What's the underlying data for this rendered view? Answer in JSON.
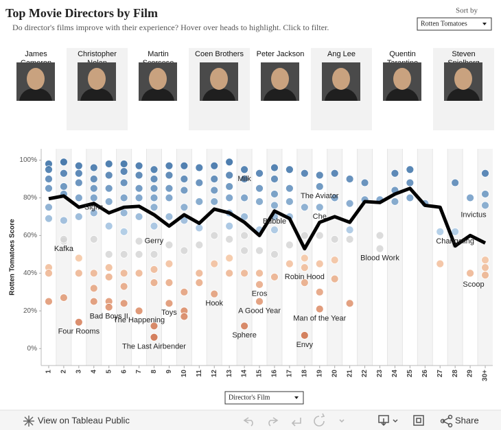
{
  "header": {
    "title": "Top Movie Directors by Film",
    "subtitle": "Do director's films improve with their experience? Hover over heads to highlight. Click to filter.",
    "sort_label": "Sort by",
    "sort_value": "Rotten Tomatoes"
  },
  "directors": [
    "James Cameron",
    "Christopher Nolan",
    "Martin Scorsese",
    "Coen Brothers",
    "Peter Jackson",
    "Ang Lee",
    "Quentin Tarantino",
    "Steven Spielberg"
  ],
  "controls": {
    "film_filter": "Director's Film"
  },
  "toolbar": {
    "view": "View on Tableau Public",
    "share": "Share"
  },
  "chart_data": {
    "type": "scatter",
    "y_label": "Rotten Tomatoes Score",
    "categories": [
      "1",
      "2",
      "3",
      "4",
      "5",
      "6",
      "7",
      "8",
      "9",
      "10",
      "11",
      "12",
      "13",
      "14",
      "15",
      "16",
      "17",
      "18",
      "19",
      "20",
      "21",
      "22",
      "23",
      "24",
      "25",
      "26",
      "27",
      "28",
      "29",
      "30+"
    ],
    "ylim": [
      -9,
      106
    ],
    "yticks": [
      {
        "value": 0,
        "label": "0%"
      },
      {
        "value": 20,
        "label": "20%"
      },
      {
        "value": 40,
        "label": "40%"
      },
      {
        "value": 60,
        "label": "60%"
      },
      {
        "value": 80,
        "label": "80%"
      },
      {
        "value": 100,
        "label": "100%"
      }
    ],
    "color_scale": {
      "domain": [
        0,
        49.9,
        50,
        60,
        60.1,
        100
      ],
      "colors": [
        "#c4542a",
        "#f6c49e",
        "#d3d3d3",
        "#d3d3d3",
        "#a9c9e6",
        "#1f5b99"
      ]
    },
    "line": {
      "color": "#000000",
      "values": [
        79.5,
        81,
        75,
        77,
        72,
        75,
        75.5,
        71,
        65,
        71,
        66.5,
        74,
        72,
        67,
        60,
        73,
        69,
        53,
        67,
        70,
        67,
        78,
        77.5,
        82,
        85,
        76,
        75,
        54.5,
        60,
        56
      ]
    },
    "points": [
      {
        "x": "1",
        "y": 98
      },
      {
        "x": "1",
        "y": 95
      },
      {
        "x": "1",
        "y": 90
      },
      {
        "x": "1",
        "y": 85
      },
      {
        "x": "1",
        "y": 75
      },
      {
        "x": "1",
        "y": 69
      },
      {
        "x": "1",
        "y": 43
      },
      {
        "x": "1",
        "y": 40
      },
      {
        "x": "1",
        "y": 25
      },
      {
        "x": "2",
        "y": 99
      },
      {
        "x": "2",
        "y": 93
      },
      {
        "x": "2",
        "y": 86
      },
      {
        "x": "2",
        "y": 82
      },
      {
        "x": "2",
        "y": 68
      },
      {
        "x": "2",
        "y": 57
      },
      {
        "x": "2",
        "y": 27
      },
      {
        "x": "3",
        "y": 97
      },
      {
        "x": "3",
        "y": 93
      },
      {
        "x": "3",
        "y": 88
      },
      {
        "x": "3",
        "y": 80
      },
      {
        "x": "3",
        "y": 70
      },
      {
        "x": "3",
        "y": 48
      },
      {
        "x": "3",
        "y": 40
      },
      {
        "x": "4",
        "y": 96
      },
      {
        "x": "4",
        "y": 90
      },
      {
        "x": "4",
        "y": 85
      },
      {
        "x": "4",
        "y": 72
      },
      {
        "x": "4",
        "y": 58
      },
      {
        "x": "4",
        "y": 40
      },
      {
        "x": "4",
        "y": 32
      },
      {
        "x": "4",
        "y": 25
      },
      {
        "x": "5",
        "y": 98
      },
      {
        "x": "5",
        "y": 92
      },
      {
        "x": "5",
        "y": 85
      },
      {
        "x": "5",
        "y": 78
      },
      {
        "x": "5",
        "y": 65
      },
      {
        "x": "5",
        "y": 50
      },
      {
        "x": "5",
        "y": 43
      },
      {
        "x": "5",
        "y": 38
      },
      {
        "x": "5",
        "y": 25
      },
      {
        "x": "6",
        "y": 98
      },
      {
        "x": "6",
        "y": 94
      },
      {
        "x": "6",
        "y": 88
      },
      {
        "x": "6",
        "y": 80
      },
      {
        "x": "6",
        "y": 72
      },
      {
        "x": "6",
        "y": 62
      },
      {
        "x": "6",
        "y": 50
      },
      {
        "x": "6",
        "y": 40
      },
      {
        "x": "6",
        "y": 33
      },
      {
        "x": "6",
        "y": 24
      },
      {
        "x": "7",
        "y": 97
      },
      {
        "x": "7",
        "y": 92
      },
      {
        "x": "7",
        "y": 85
      },
      {
        "x": "7",
        "y": 80
      },
      {
        "x": "7",
        "y": 70
      },
      {
        "x": "7",
        "y": 50
      },
      {
        "x": "7",
        "y": 40
      },
      {
        "x": "8",
        "y": 95
      },
      {
        "x": "8",
        "y": 90
      },
      {
        "x": "8",
        "y": 85
      },
      {
        "x": "8",
        "y": 80
      },
      {
        "x": "8",
        "y": 75
      },
      {
        "x": "8",
        "y": 65
      },
      {
        "x": "8",
        "y": 50
      },
      {
        "x": "8",
        "y": 42
      },
      {
        "x": "8",
        "y": 35
      },
      {
        "x": "8",
        "y": 12
      },
      {
        "x": "9",
        "y": 97
      },
      {
        "x": "9",
        "y": 92
      },
      {
        "x": "9",
        "y": 85
      },
      {
        "x": "9",
        "y": 80
      },
      {
        "x": "9",
        "y": 70
      },
      {
        "x": "9",
        "y": 55
      },
      {
        "x": "9",
        "y": 45
      },
      {
        "x": "9",
        "y": 35
      },
      {
        "x": "10",
        "y": 97
      },
      {
        "x": "10",
        "y": 90
      },
      {
        "x": "10",
        "y": 84
      },
      {
        "x": "10",
        "y": 75
      },
      {
        "x": "10",
        "y": 68
      },
      {
        "x": "10",
        "y": 52
      },
      {
        "x": "10",
        "y": 30
      },
      {
        "x": "10",
        "y": 20
      },
      {
        "x": "10",
        "y": 17
      },
      {
        "x": "11",
        "y": 96
      },
      {
        "x": "11",
        "y": 88
      },
      {
        "x": "11",
        "y": 78
      },
      {
        "x": "11",
        "y": 64
      },
      {
        "x": "11",
        "y": 55
      },
      {
        "x": "11",
        "y": 40
      },
      {
        "x": "11",
        "y": 35
      },
      {
        "x": "12",
        "y": 97
      },
      {
        "x": "12",
        "y": 90
      },
      {
        "x": "12",
        "y": 84
      },
      {
        "x": "12",
        "y": 78
      },
      {
        "x": "12",
        "y": 60
      },
      {
        "x": "12",
        "y": 45
      },
      {
        "x": "13",
        "y": 99
      },
      {
        "x": "13",
        "y": 92
      },
      {
        "x": "13",
        "y": 86
      },
      {
        "x": "13",
        "y": 80
      },
      {
        "x": "13",
        "y": 72
      },
      {
        "x": "13",
        "y": 65
      },
      {
        "x": "13",
        "y": 58
      },
      {
        "x": "13",
        "y": 48
      },
      {
        "x": "13",
        "y": 40
      },
      {
        "x": "14",
        "y": 90
      },
      {
        "x": "14",
        "y": 80
      },
      {
        "x": "14",
        "y": 70
      },
      {
        "x": "14",
        "y": 60
      },
      {
        "x": "14",
        "y": 52
      },
      {
        "x": "14",
        "y": 40
      },
      {
        "x": "15",
        "y": 93
      },
      {
        "x": "15",
        "y": 85
      },
      {
        "x": "15",
        "y": 78
      },
      {
        "x": "15",
        "y": 63
      },
      {
        "x": "15",
        "y": 52
      },
      {
        "x": "15",
        "y": 40
      },
      {
        "x": "16",
        "y": 96
      },
      {
        "x": "16",
        "y": 90
      },
      {
        "x": "16",
        "y": 82
      },
      {
        "x": "16",
        "y": 76
      },
      {
        "x": "16",
        "y": 70
      },
      {
        "x": "16",
        "y": 50
      },
      {
        "x": "16",
        "y": 38
      },
      {
        "x": "17",
        "y": 95
      },
      {
        "x": "17",
        "y": 85
      },
      {
        "x": "17",
        "y": 78
      },
      {
        "x": "17",
        "y": 70
      },
      {
        "x": "17",
        "y": 55
      },
      {
        "x": "17",
        "y": 45
      },
      {
        "x": "18",
        "y": 93
      },
      {
        "x": "18",
        "y": 75
      },
      {
        "x": "18",
        "y": 60
      },
      {
        "x": "18",
        "y": 48
      },
      {
        "x": "18",
        "y": 35
      },
      {
        "x": "19",
        "y": 92
      },
      {
        "x": "19",
        "y": 60
      },
      {
        "x": "19",
        "y": 45
      },
      {
        "x": "19",
        "y": 30
      },
      {
        "x": "20",
        "y": 93
      },
      {
        "x": "20",
        "y": 80
      },
      {
        "x": "20",
        "y": 58
      },
      {
        "x": "20",
        "y": 47
      },
      {
        "x": "20",
        "y": 37
      },
      {
        "x": "21",
        "y": 90
      },
      {
        "x": "21",
        "y": 77
      },
      {
        "x": "21",
        "y": 63
      },
      {
        "x": "21",
        "y": 58
      },
      {
        "x": "21",
        "y": 24
      },
      {
        "x": "22",
        "y": 88
      },
      {
        "x": "22",
        "y": 79
      },
      {
        "x": "23",
        "y": 79
      },
      {
        "x": "23",
        "y": 60
      },
      {
        "x": "24",
        "y": 93
      },
      {
        "x": "24",
        "y": 84
      },
      {
        "x": "24",
        "y": 78
      },
      {
        "x": "25",
        "y": 95
      },
      {
        "x": "25",
        "y": 88
      },
      {
        "x": "25",
        "y": 80
      },
      {
        "x": "26",
        "y": 77
      },
      {
        "x": "27",
        "y": 62
      },
      {
        "x": "27",
        "y": 45
      },
      {
        "x": "28",
        "y": 88
      },
      {
        "x": "28",
        "y": 55
      },
      {
        "x": "29",
        "y": 80
      },
      {
        "x": "29",
        "y": 40
      },
      {
        "x": "30+",
        "y": 93
      },
      {
        "x": "30+",
        "y": 82
      },
      {
        "x": "30+",
        "y": 47
      },
      {
        "x": "30+",
        "y": 43
      },
      {
        "x": "2",
        "y": 58,
        "label": "Kafka",
        "label_position": "below"
      },
      {
        "x": "4",
        "y": 80,
        "label": "Signs",
        "label_position": "below"
      },
      {
        "x": "7",
        "y": 57,
        "label": "Gerry",
        "label_position": "right"
      },
      {
        "x": "3",
        "y": 14,
        "label": "Four Rooms",
        "label_position": "below"
      },
      {
        "x": "5",
        "y": 22,
        "label": "Bad Boys II",
        "label_position": "below"
      },
      {
        "x": "7",
        "y": 20,
        "label": "The Happening",
        "label_position": "below"
      },
      {
        "x": "8",
        "y": 6,
        "label": "The Last Airbender",
        "label_position": "below"
      },
      {
        "x": "9",
        "y": 24,
        "label": "Toys",
        "label_position": "below"
      },
      {
        "x": "12",
        "y": 29,
        "label": "Hook",
        "label_position": "below"
      },
      {
        "x": "14",
        "y": 95,
        "label": "Milk",
        "label_position": "below"
      },
      {
        "x": "15",
        "y": 34,
        "label": "Eros",
        "label_position": "below"
      },
      {
        "x": "15",
        "y": 25,
        "label": "A Good Year",
        "label_position": "below"
      },
      {
        "x": "14",
        "y": 12,
        "label": "Sphere",
        "label_position": "below"
      },
      {
        "x": "16",
        "y": 63,
        "label": "Bubble",
        "label_position": "above"
      },
      {
        "x": "19",
        "y": 86,
        "label": "The Aviator",
        "label_position": "below"
      },
      {
        "x": "19",
        "y": 75,
        "label": "Che",
        "label_position": "below"
      },
      {
        "x": "18",
        "y": 43,
        "label": "Robin Hood",
        "label_position": "below"
      },
      {
        "x": "19",
        "y": 21,
        "label": "Man of the Year",
        "label_position": "below"
      },
      {
        "x": "18",
        "y": 7,
        "label": "Envy",
        "label_position": "below"
      },
      {
        "x": "23",
        "y": 53,
        "label": "Blood Work",
        "label_position": "below"
      },
      {
        "x": "28",
        "y": 62,
        "label": "Changeling",
        "label_position": "below"
      },
      {
        "x": "30+",
        "y": 76,
        "label": "Invictus",
        "label_position": "below"
      },
      {
        "x": "30+",
        "y": 39,
        "label": "Scoop",
        "label_position": "below"
      }
    ]
  }
}
